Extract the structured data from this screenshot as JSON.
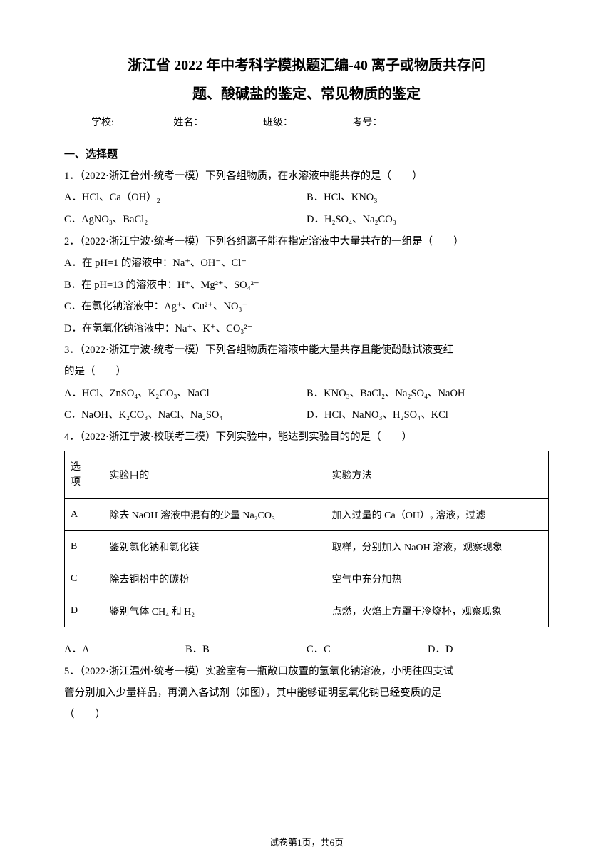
{
  "title_line1": "浙江省 2022 年中考科学模拟题汇编-40 离子或物质共存问",
  "title_line2": "题、酸碱盐的鉴定、常见物质的鉴定",
  "form": {
    "school": "学校:",
    "name": "姓名：",
    "class": "班级：",
    "examno": "考号："
  },
  "section1": "一、选择题",
  "q1": {
    "stem": "1．（2022·浙江台州·统考一模）下列各组物质，在水溶液中能共存的是（　　）",
    "A_pre": "A．HCl、Ca（OH）",
    "A_sub": "2",
    "B_pre": "B．HCl、KNO",
    "B_sub": "3",
    "C": "C．AgNO₃、BaCl₂",
    "D": "D．H₂SO₄、Na₂CO₃"
  },
  "q2": {
    "stem": "2．（2022·浙江宁波·统考一模）下列各组离子能在指定溶液中大量共存的一组是（　　）",
    "A": "A．在 pH=1 的溶液中：Na⁺、OH⁻、Cl⁻",
    "B": "B．在 pH=13 的溶液中：H⁺、Mg²⁺、SO₄²⁻",
    "C": "C．在氯化钠溶液中：Ag⁺、Cu²⁺、NO₃⁻",
    "D": "D．在氢氧化钠溶液中：Na⁺、K⁺、CO₃²⁻"
  },
  "q3": {
    "stem_a": "3．（2022·浙江宁波·统考一模）下列各组物质在溶液中能大量共存且能使酚酞试液变红",
    "stem_b": "的是（　　）",
    "A": "A．HCl、ZnSO₄、K₂CO₃、NaCl",
    "B": "B．KNO₃、BaCl₂、Na₂SO₄、NaOH",
    "C": "C．NaOH、K₂CO₃、NaCl、Na₂SO₄",
    "D": "D．HCl、NaNO₃、H₂SO₄、KCl"
  },
  "q4": {
    "stem": "4．（2022·浙江宁波·校联考三模）下列实验中，能达到实验目的的是（　　）",
    "headers": [
      "选项",
      "实验目的",
      "实验方法"
    ],
    "rows": [
      [
        "A",
        "除去 NaOH 溶液中混有的少量 Na₂CO₃",
        "加入过量的 Ca（OH）₂ 溶液，过滤"
      ],
      [
        "B",
        "鉴别氯化钠和氯化镁",
        "取样，分别加入 NaOH 溶液，观察现象"
      ],
      [
        "C",
        "除去铜粉中的碳粉",
        "空气中充分加热"
      ],
      [
        "D",
        "鉴别气体 CH₄ 和 H₂",
        "点燃，火焰上方罩干冷烧杯，观察现象"
      ]
    ],
    "opts": {
      "A": "A．A",
      "B": "B．B",
      "C": "C．C",
      "D": "D．D"
    }
  },
  "q5": {
    "line1": "5．（2022·浙江温州·统考一模）实验室有一瓶敞口放置的氢氧化钠溶液，小明往四支试",
    "line2": "管分别加入少量样品，再滴入各试剂（如图），其中能够证明氢氧化钠已经变质的是",
    "line3": "（　　）"
  },
  "footer": "试卷第1页，共6页"
}
